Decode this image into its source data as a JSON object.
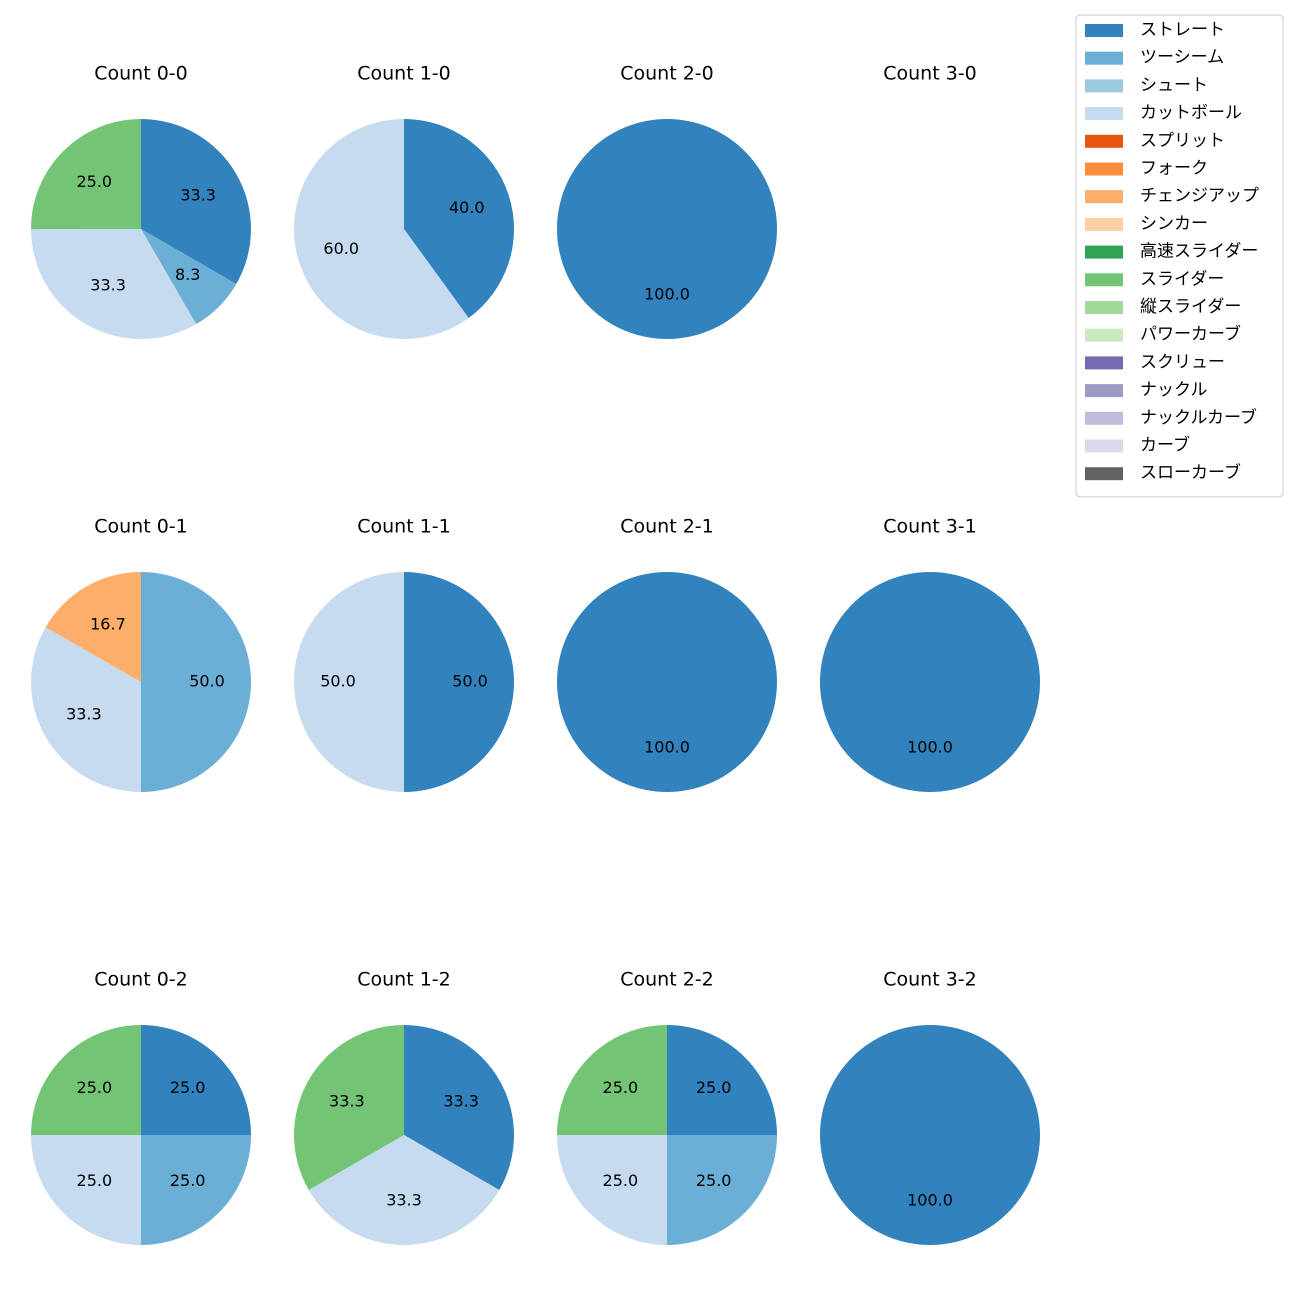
{
  "chart_data": {
    "type": "pie",
    "pitch_types": [
      {
        "name": "ストレート",
        "color": "#3182bd"
      },
      {
        "name": "ツーシーム",
        "color": "#6baed6"
      },
      {
        "name": "シュート",
        "color": "#9ecae1"
      },
      {
        "name": "カットボール",
        "color": "#c6dbef"
      },
      {
        "name": "スプリット",
        "color": "#e6550d"
      },
      {
        "name": "フォーク",
        "color": "#fd8d3c"
      },
      {
        "name": "チェンジアップ",
        "color": "#fdae6b"
      },
      {
        "name": "シンカー",
        "color": "#fdd0a2"
      },
      {
        "name": "高速スライダー",
        "color": "#31a354"
      },
      {
        "name": "スライダー",
        "color": "#74c476"
      },
      {
        "name": "縦スライダー",
        "color": "#a1d99b"
      },
      {
        "name": "パワーカーブ",
        "color": "#c7e9c0"
      },
      {
        "name": "スクリュー",
        "color": "#756bb1"
      },
      {
        "name": "ナックル",
        "color": "#9e9ac8"
      },
      {
        "name": "ナックルカーブ",
        "color": "#bcbddc"
      },
      {
        "name": "カーブ",
        "color": "#dadaeb"
      },
      {
        "name": "スローカーブ",
        "color": "#636363"
      }
    ],
    "charts": [
      {
        "title": "Count 0-0",
        "slices": [
          {
            "pitch": "ストレート",
            "value": 33.3,
            "label": "33.3"
          },
          {
            "pitch": "ツーシーム",
            "value": 8.3,
            "label": "8.3"
          },
          {
            "pitch": "カットボール",
            "value": 33.3,
            "label": "33.3"
          },
          {
            "pitch": "スライダー",
            "value": 25.0,
            "label": "25.0"
          }
        ]
      },
      {
        "title": "Count 1-0",
        "slices": [
          {
            "pitch": "ストレート",
            "value": 40.0,
            "label": "40.0"
          },
          {
            "pitch": "カットボール",
            "value": 60.0,
            "label": "60.0"
          }
        ]
      },
      {
        "title": "Count 2-0",
        "slices": [
          {
            "pitch": "ストレート",
            "value": 100.0,
            "label": "100.0"
          }
        ]
      },
      {
        "title": "Count 3-0",
        "slices": []
      },
      {
        "title": "Count 0-1",
        "slices": [
          {
            "pitch": "ツーシーム",
            "value": 50.0,
            "label": "50.0"
          },
          {
            "pitch": "カットボール",
            "value": 33.3,
            "label": "33.3"
          },
          {
            "pitch": "チェンジアップ",
            "value": 16.7,
            "label": "16.7"
          }
        ]
      },
      {
        "title": "Count 1-1",
        "slices": [
          {
            "pitch": "ストレート",
            "value": 50.0,
            "label": "50.0"
          },
          {
            "pitch": "カットボール",
            "value": 50.0,
            "label": "50.0"
          }
        ]
      },
      {
        "title": "Count 2-1",
        "slices": [
          {
            "pitch": "ストレート",
            "value": 100.0,
            "label": "100.0"
          }
        ]
      },
      {
        "title": "Count 3-1",
        "slices": [
          {
            "pitch": "ストレート",
            "value": 100.0,
            "label": "100.0"
          }
        ]
      },
      {
        "title": "Count 0-2",
        "slices": [
          {
            "pitch": "ストレート",
            "value": 25.0,
            "label": "25.0"
          },
          {
            "pitch": "ツーシーム",
            "value": 25.0,
            "label": "25.0"
          },
          {
            "pitch": "カットボール",
            "value": 25.0,
            "label": "25.0"
          },
          {
            "pitch": "スライダー",
            "value": 25.0,
            "label": "25.0"
          }
        ]
      },
      {
        "title": "Count 1-2",
        "slices": [
          {
            "pitch": "ストレート",
            "value": 33.3,
            "label": "33.3"
          },
          {
            "pitch": "カットボール",
            "value": 33.3,
            "label": "33.3"
          },
          {
            "pitch": "スライダー",
            "value": 33.3,
            "label": "33.3"
          }
        ]
      },
      {
        "title": "Count 2-2",
        "slices": [
          {
            "pitch": "ストレート",
            "value": 25.0,
            "label": "25.0"
          },
          {
            "pitch": "ツーシーム",
            "value": 25.0,
            "label": "25.0"
          },
          {
            "pitch": "カットボール",
            "value": 25.0,
            "label": "25.0"
          },
          {
            "pitch": "スライダー",
            "value": 25.0,
            "label": "25.0"
          }
        ]
      },
      {
        "title": "Count 3-2",
        "slices": [
          {
            "pitch": "ストレート",
            "value": 100.0,
            "label": "100.0"
          }
        ]
      }
    ],
    "legend_position": "top-right"
  }
}
